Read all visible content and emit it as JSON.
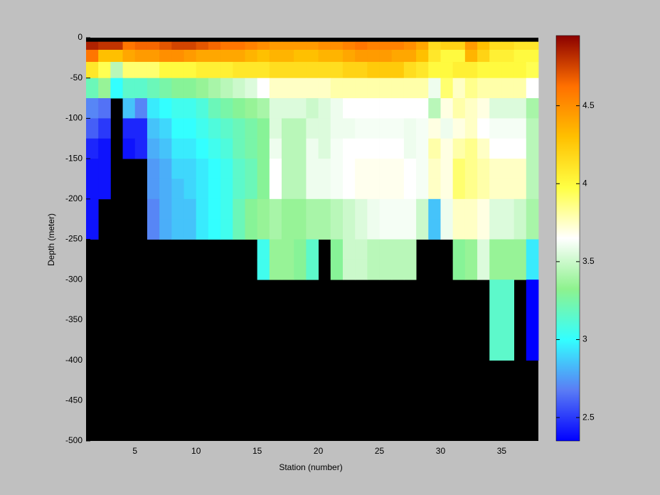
{
  "chart_data": {
    "type": "heatmap",
    "xlabel": "Station (number)",
    "ylabel": "Depth (meter)",
    "x": [
      1,
      2,
      3,
      4,
      5,
      6,
      7,
      8,
      9,
      10,
      11,
      12,
      13,
      14,
      15,
      16,
      17,
      18,
      19,
      20,
      21,
      22,
      23,
      24,
      25,
      26,
      27,
      28,
      29,
      30,
      31,
      32,
      33,
      34,
      35,
      36,
      37,
      38
    ],
    "y_edges": [
      0,
      -5,
      -15,
      -30,
      -50,
      -75,
      -100,
      -125,
      -150,
      -175,
      -200,
      -225,
      -250,
      -275,
      -300,
      -400,
      -500
    ],
    "z": [
      [
        null,
        null,
        null,
        null,
        null,
        null,
        null,
        null,
        null,
        null,
        null,
        null,
        null,
        null,
        null,
        null,
        null,
        null,
        null,
        null,
        null,
        null,
        null,
        null,
        null,
        null,
        null,
        null,
        null,
        null,
        null,
        null,
        null,
        null,
        null,
        null,
        null
      ],
      [
        4.85,
        4.8,
        4.8,
        4.6,
        4.65,
        4.65,
        4.7,
        4.75,
        4.75,
        4.7,
        4.65,
        4.6,
        4.6,
        4.55,
        4.5,
        4.45,
        4.45,
        4.45,
        4.45,
        4.5,
        4.5,
        4.55,
        4.6,
        4.55,
        4.55,
        4.55,
        4.5,
        4.4,
        4.15,
        4.2,
        4.2,
        4.45,
        4.3,
        4.15,
        4.15,
        4.1,
        4.1
      ],
      [
        4.6,
        4.3,
        4.3,
        4.4,
        4.45,
        4.45,
        4.5,
        4.5,
        4.45,
        4.4,
        4.4,
        4.4,
        4.4,
        4.35,
        4.3,
        4.35,
        4.35,
        4.3,
        4.3,
        4.35,
        4.35,
        4.4,
        4.45,
        4.45,
        4.45,
        4.4,
        4.4,
        4.3,
        4.1,
        4.0,
        4.0,
        4.35,
        4.2,
        4.05,
        4.05,
        4.0,
        4.0
      ],
      [
        4.1,
        3.95,
        3.45,
        3.9,
        3.9,
        3.9,
        4.0,
        4.0,
        4.0,
        4.05,
        4.05,
        4.05,
        4.1,
        4.1,
        4.1,
        4.15,
        4.15,
        4.15,
        4.15,
        4.15,
        4.15,
        4.2,
        4.2,
        4.25,
        4.25,
        4.25,
        4.15,
        4.1,
        4.0,
        4.0,
        4.05,
        4.05,
        4.0,
        4.0,
        4.0,
        4.0,
        3.95
      ],
      [
        3.2,
        3.35,
        3.0,
        3.15,
        3.15,
        3.2,
        3.25,
        3.3,
        3.3,
        3.35,
        3.4,
        3.45,
        3.5,
        3.55,
        3.65,
        3.75,
        3.75,
        3.75,
        3.75,
        3.75,
        3.8,
        3.8,
        3.8,
        3.8,
        3.8,
        3.8,
        3.8,
        3.8,
        3.6,
        3.9,
        3.75,
        3.85,
        3.8,
        3.8,
        3.8,
        3.8,
        3.65
      ],
      [
        2.7,
        2.65,
        null,
        2.85,
        2.7,
        2.95,
        3.0,
        3.05,
        3.05,
        3.1,
        3.2,
        3.25,
        3.3,
        3.35,
        3.4,
        3.55,
        3.55,
        3.55,
        3.5,
        3.55,
        3.6,
        3.65,
        3.65,
        3.65,
        3.65,
        3.65,
        3.65,
        3.65,
        3.45,
        3.7,
        3.8,
        3.75,
        3.7,
        3.55,
        3.55,
        3.55,
        3.4
      ],
      [
        2.6,
        2.5,
        null,
        2.45,
        2.45,
        2.85,
        2.9,
        3.0,
        3.0,
        3.05,
        3.1,
        3.15,
        3.2,
        3.25,
        3.3,
        3.55,
        3.45,
        3.45,
        3.55,
        3.55,
        3.6,
        3.6,
        3.62,
        3.62,
        3.62,
        3.62,
        3.6,
        3.62,
        3.7,
        3.6,
        3.7,
        3.75,
        3.65,
        3.62,
        3.62,
        3.62,
        3.45
      ],
      [
        2.45,
        2.4,
        null,
        2.4,
        2.45,
        2.8,
        2.85,
        2.95,
        2.95,
        3.0,
        3.05,
        3.1,
        3.2,
        3.25,
        3.3,
        3.6,
        3.45,
        3.45,
        3.6,
        3.55,
        3.62,
        3.65,
        3.65,
        3.65,
        3.65,
        3.65,
        3.6,
        3.62,
        3.8,
        3.7,
        3.8,
        3.85,
        3.75,
        3.65,
        3.65,
        3.65,
        3.45
      ],
      [
        2.4,
        2.4,
        null,
        null,
        null,
        2.75,
        2.8,
        2.9,
        2.9,
        2.95,
        3.0,
        3.05,
        3.15,
        3.2,
        3.3,
        3.65,
        3.45,
        3.45,
        3.6,
        3.6,
        3.62,
        3.65,
        3.68,
        3.68,
        3.68,
        3.68,
        3.65,
        3.62,
        3.75,
        3.7,
        3.9,
        3.85,
        3.8,
        3.75,
        3.75,
        3.75,
        3.45
      ],
      [
        2.4,
        2.4,
        null,
        null,
        null,
        2.75,
        2.8,
        2.85,
        2.9,
        2.95,
        3.0,
        3.05,
        3.15,
        3.2,
        3.3,
        3.65,
        3.45,
        3.45,
        3.6,
        3.6,
        3.62,
        3.65,
        3.68,
        3.68,
        3.68,
        3.68,
        3.65,
        3.62,
        3.75,
        3.7,
        3.9,
        3.85,
        3.8,
        3.75,
        3.75,
        3.75,
        3.45
      ],
      [
        2.4,
        null,
        null,
        null,
        null,
        2.7,
        2.8,
        2.85,
        2.85,
        2.95,
        3.0,
        3.05,
        3.2,
        3.3,
        3.35,
        3.4,
        3.35,
        3.35,
        3.4,
        3.4,
        3.45,
        3.5,
        3.55,
        3.6,
        3.62,
        3.62,
        3.62,
        3.5,
        2.85,
        3.6,
        3.75,
        3.75,
        3.7,
        3.55,
        3.55,
        3.5,
        3.4
      ],
      [
        2.4,
        null,
        null,
        null,
        null,
        2.7,
        2.8,
        2.85,
        2.85,
        2.95,
        3.0,
        3.05,
        3.2,
        3.3,
        3.35,
        3.4,
        3.35,
        3.35,
        3.4,
        3.4,
        3.45,
        3.5,
        3.55,
        3.6,
        3.62,
        3.62,
        3.62,
        3.5,
        2.85,
        3.6,
        3.75,
        3.75,
        3.7,
        3.55,
        3.55,
        3.5,
        3.4
      ],
      [
        null,
        null,
        null,
        null,
        null,
        null,
        null,
        null,
        null,
        null,
        null,
        null,
        null,
        null,
        3.05,
        3.35,
        3.35,
        3.3,
        3.15,
        null,
        3.3,
        3.5,
        3.5,
        3.45,
        3.45,
        3.45,
        3.45,
        null,
        null,
        null,
        3.3,
        3.35,
        3.55,
        3.35,
        3.35,
        3.35,
        2.95
      ],
      [
        null,
        null,
        null,
        null,
        null,
        null,
        null,
        null,
        null,
        null,
        null,
        null,
        null,
        null,
        3.05,
        3.35,
        3.35,
        3.3,
        3.15,
        null,
        3.3,
        3.5,
        3.5,
        3.45,
        3.45,
        3.45,
        3.45,
        null,
        null,
        null,
        3.3,
        3.35,
        3.55,
        3.35,
        3.35,
        3.35,
        2.95
      ],
      [
        null,
        null,
        null,
        null,
        null,
        null,
        null,
        null,
        null,
        null,
        null,
        null,
        null,
        null,
        null,
        null,
        null,
        null,
        null,
        null,
        null,
        null,
        null,
        null,
        null,
        null,
        null,
        null,
        null,
        null,
        null,
        null,
        null,
        3.15,
        3.15,
        null,
        2.35
      ],
      [
        null,
        null,
        null,
        null,
        null,
        null,
        null,
        null,
        null,
        null,
        null,
        null,
        null,
        null,
        null,
        null,
        null,
        null,
        null,
        null,
        null,
        null,
        null,
        null,
        null,
        null,
        null,
        null,
        null,
        null,
        null,
        null,
        null,
        null,
        null,
        null,
        null
      ]
    ],
    "xlim": [
      1,
      38
    ],
    "ylim": [
      -500,
      0
    ],
    "xticks": [
      5,
      10,
      15,
      20,
      25,
      30,
      35
    ],
    "yticks": [
      0,
      -50,
      -100,
      -150,
      -200,
      -250,
      -300,
      -350,
      -400,
      -450,
      -500
    ],
    "zlim": [
      2.35,
      4.95
    ],
    "zticks": [
      2.5,
      3,
      3.5,
      4,
      4.5
    ],
    "colormap": [
      "#0000ff",
      "#5a7cf5",
      "#33ffff",
      "#8ef28e",
      "#ffffff",
      "#ffff44",
      "#ffc000",
      "#ff7000",
      "#8b0000"
    ],
    "background": "#000000"
  }
}
